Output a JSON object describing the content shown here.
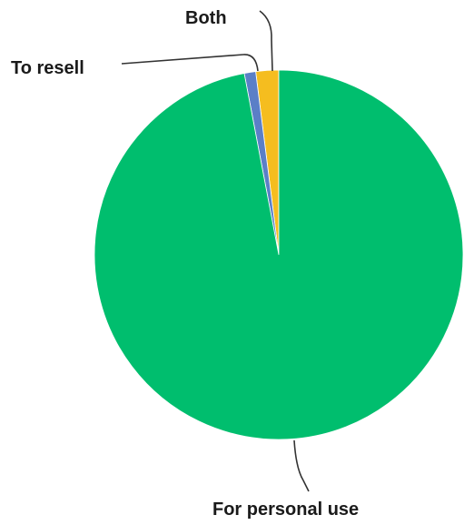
{
  "chart_data": {
    "type": "pie",
    "title": "",
    "slices": [
      {
        "label": "Both",
        "value": 2,
        "color": "#f5bd1f"
      },
      {
        "label": "To resell",
        "value": 1,
        "color": "#5b7fc7"
      },
      {
        "label": "For personal use",
        "value": 97,
        "color": "#00be6e"
      }
    ],
    "legend": "none",
    "labels_style": "outside-with-leader-lines"
  }
}
